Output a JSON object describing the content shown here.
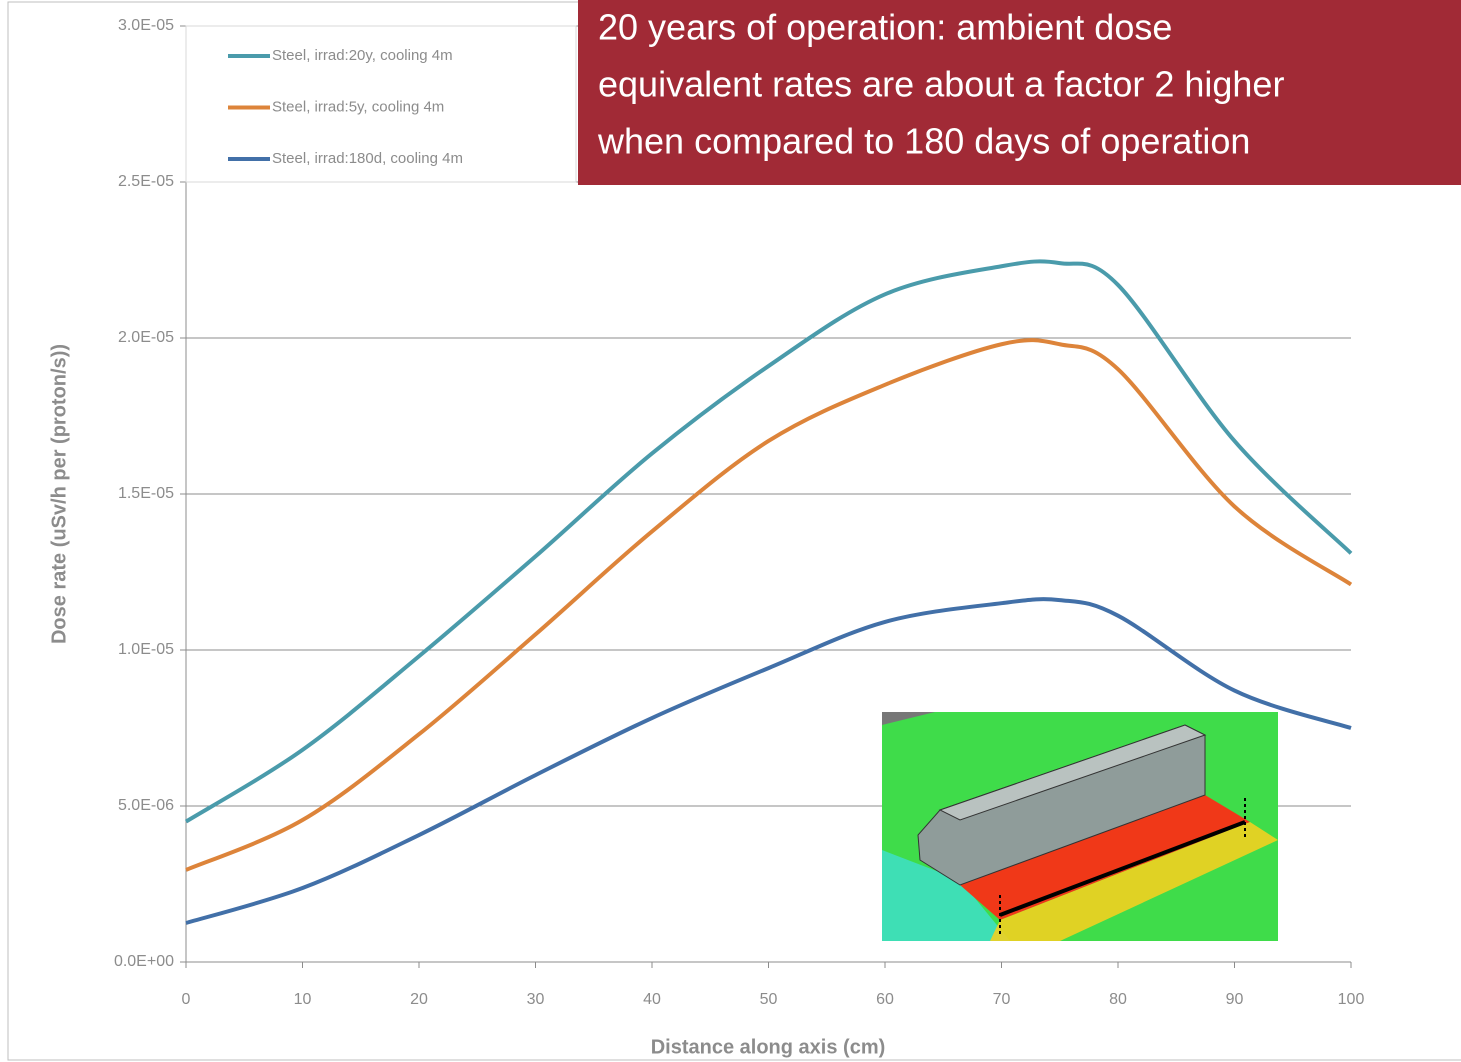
{
  "chart_data": {
    "type": "line",
    "x_label": "Distance along axis (cm)",
    "y_label": "Dose rate (uSv/h per (proton/s))",
    "x": [
      0,
      10,
      20,
      30,
      40,
      50,
      60,
      70,
      75,
      80,
      90,
      100
    ],
    "series": [
      {
        "name": "Steel, irrad:20y, cooling 4m",
        "color": "#4a9bab",
        "values": [
          4.5e-06,
          6.8e-06,
          9.8e-06,
          1.3e-05,
          1.63e-05,
          1.91e-05,
          2.14e-05,
          2.23e-05,
          2.24e-05,
          2.17e-05,
          1.67e-05,
          1.31e-05
        ]
      },
      {
        "name": "Steel, irrad:5y, cooling 4m",
        "color": "#dd843a",
        "values": [
          2.95e-06,
          4.55e-06,
          7.3e-06,
          1.05e-05,
          1.38e-05,
          1.67e-05,
          1.85e-05,
          1.98e-05,
          1.98e-05,
          1.9e-05,
          1.46e-05,
          1.21e-05
        ]
      },
      {
        "name": "Steel, irrad:180d, cooling 4m",
        "color": "#4270a8",
        "values": [
          1.25e-06,
          2.37e-06,
          4.07e-06,
          5.99e-06,
          7.82e-06,
          9.42e-06,
          1.09e-05,
          1.15e-05,
          1.16e-05,
          1.11e-05,
          8.7e-06,
          7.5e-06
        ]
      }
    ],
    "xlim": [
      0,
      100
    ],
    "xticks": [
      0,
      10,
      20,
      30,
      40,
      50,
      60,
      70,
      80,
      90,
      100
    ],
    "ylim": [
      0,
      3e-05
    ],
    "yticks": [
      {
        "value": 0,
        "label": "0.0E+00"
      },
      {
        "value": 5e-06,
        "label": "5.0E-06"
      },
      {
        "value": 1e-05,
        "label": "1.0E-05"
      },
      {
        "value": 1.5e-05,
        "label": "1.5E-05"
      },
      {
        "value": 2e-05,
        "label": "2.0E-05"
      },
      {
        "value": 2.5e-05,
        "label": "2.5E-05"
      },
      {
        "value": 3e-05,
        "label": "3.0E-05"
      }
    ],
    "grid": true,
    "legend": "upper left",
    "annotation": {
      "color": "#a12a36",
      "lines": [
        "20 years of operation: ambient dose",
        "equivalent rates are about a factor 2 higher",
        "when compared to 180 days of operation"
      ]
    }
  }
}
